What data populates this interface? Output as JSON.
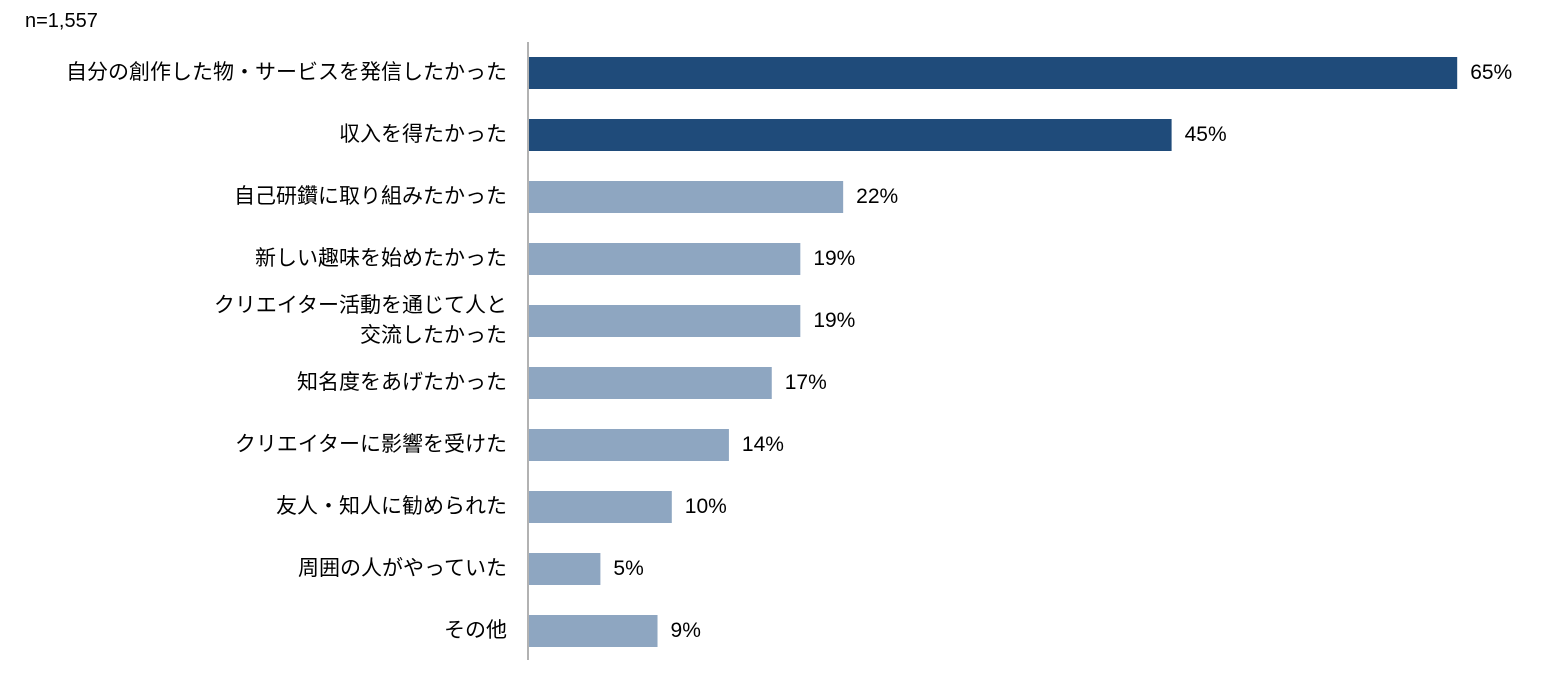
{
  "chart_data": {
    "type": "bar",
    "orientation": "horizontal",
    "subtitle": "n=1,557",
    "categories": [
      "自分の創作した物・サービスを発信したかった",
      "収入を得たかった",
      "自己研鑽に取り組みたかった",
      "新しい趣味を始めたかった",
      "クリエイター活動を通じて人と\n交流したかった",
      "知名度をあげたかった",
      "クリエイターに影響を受けた",
      "友人・知人に勧められた",
      "周囲の人がやっていた",
      "その他"
    ],
    "values": [
      65,
      45,
      22,
      19,
      19,
      17,
      14,
      10,
      5,
      9
    ],
    "value_labels": [
      "65%",
      "45%",
      "22%",
      "19%",
      "19%",
      "17%",
      "14%",
      "10%",
      "5%",
      "9%"
    ],
    "colors": [
      "#1f4b7a",
      "#1f4b7a",
      "#8ea6c1",
      "#8ea6c1",
      "#8ea6c1",
      "#8ea6c1",
      "#8ea6c1",
      "#8ea6c1",
      "#8ea6c1",
      "#8ea6c1"
    ]
  }
}
